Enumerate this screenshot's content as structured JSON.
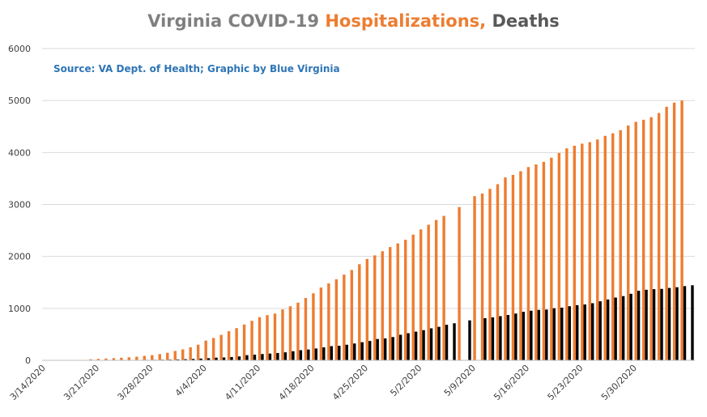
{
  "chart_data": {
    "type": "bar",
    "title_parts": [
      {
        "text": "Virginia COVID-19 ",
        "color": "#7f7f7f"
      },
      {
        "text": "Hospitalizations, ",
        "color": "#ed7d31"
      },
      {
        "text": "Deaths",
        "color": "#595959"
      }
    ],
    "source_note": "Source: VA Dept. of Health; Graphic by Blue Virginia",
    "source_color": "#2e75b6",
    "x_start": "3/14/2020",
    "x_end": "6/6/2020",
    "x_ticks": [
      "3/14/2020",
      "3/21/2020",
      "3/28/2020",
      "4/4/2020",
      "4/11/2020",
      "4/18/2020",
      "4/25/2020",
      "5/2/2020",
      "5/9/2020",
      "5/16/2020",
      "5/23/2020",
      "5/30/2020"
    ],
    "ylim": [
      0,
      6000
    ],
    "y_ticks": [
      0,
      1000,
      2000,
      3000,
      4000,
      5000,
      6000
    ],
    "grid": true,
    "series": [
      {
        "name": "Hospitalizations",
        "color": "#ed7d31",
        "points": [
          [
            "3/20/2020",
            20
          ],
          [
            "3/21/2020",
            28
          ],
          [
            "3/22/2020",
            35
          ],
          [
            "3/23/2020",
            42
          ],
          [
            "3/24/2020",
            50
          ],
          [
            "3/25/2020",
            58
          ],
          [
            "3/26/2020",
            70
          ],
          [
            "3/27/2020",
            85
          ],
          [
            "3/28/2020",
            100
          ],
          [
            "3/29/2020",
            120
          ],
          [
            "3/30/2020",
            145
          ],
          [
            "3/31/2020",
            180
          ],
          [
            "4/1/2020",
            210
          ],
          [
            "4/2/2020",
            250
          ],
          [
            "4/3/2020",
            300
          ],
          [
            "4/4/2020",
            380
          ],
          [
            "4/5/2020",
            430
          ],
          [
            "4/6/2020",
            490
          ],
          [
            "4/7/2020",
            560
          ],
          [
            "4/8/2020",
            620
          ],
          [
            "4/9/2020",
            690
          ],
          [
            "4/10/2020",
            760
          ],
          [
            "4/11/2020",
            830
          ],
          [
            "4/12/2020",
            870
          ],
          [
            "4/13/2020",
            900
          ],
          [
            "4/14/2020",
            980
          ],
          [
            "4/15/2020",
            1040
          ],
          [
            "4/16/2020",
            1110
          ],
          [
            "4/17/2020",
            1200
          ],
          [
            "4/18/2020",
            1290
          ],
          [
            "4/19/2020",
            1400
          ],
          [
            "4/20/2020",
            1480
          ],
          [
            "4/21/2020",
            1560
          ],
          [
            "4/22/2020",
            1650
          ],
          [
            "4/23/2020",
            1740
          ],
          [
            "4/24/2020",
            1850
          ],
          [
            "4/25/2020",
            1950
          ],
          [
            "4/26/2020",
            2020
          ],
          [
            "4/27/2020",
            2100
          ],
          [
            "4/28/2020",
            2180
          ],
          [
            "4/29/2020",
            2250
          ],
          [
            "4/30/2020",
            2320
          ],
          [
            "5/1/2020",
            2420
          ],
          [
            "5/2/2020",
            2520
          ],
          [
            "5/3/2020",
            2610
          ],
          [
            "5/4/2020",
            2700
          ],
          [
            "5/5/2020",
            2780
          ],
          [
            "5/7/2020",
            2950
          ],
          [
            "5/9/2020",
            3160
          ],
          [
            "5/10/2020",
            3210
          ],
          [
            "5/11/2020",
            3300
          ],
          [
            "5/12/2020",
            3390
          ],
          [
            "5/13/2020",
            3520
          ],
          [
            "5/14/2020",
            3570
          ],
          [
            "5/15/2020",
            3640
          ],
          [
            "5/16/2020",
            3720
          ],
          [
            "5/17/2020",
            3770
          ],
          [
            "5/18/2020",
            3820
          ],
          [
            "5/19/2020",
            3900
          ],
          [
            "5/20/2020",
            3990
          ],
          [
            "5/21/2020",
            4080
          ],
          [
            "5/22/2020",
            4130
          ],
          [
            "5/23/2020",
            4170
          ],
          [
            "5/24/2020",
            4200
          ],
          [
            "5/25/2020",
            4250
          ],
          [
            "5/26/2020",
            4320
          ],
          [
            "5/27/2020",
            4370
          ],
          [
            "5/28/2020",
            4430
          ],
          [
            "5/29/2020",
            4520
          ],
          [
            "5/30/2020",
            4590
          ],
          [
            "5/31/2020",
            4630
          ],
          [
            "6/1/2020",
            4680
          ],
          [
            "6/2/2020",
            4760
          ],
          [
            "6/3/2020",
            4880
          ],
          [
            "6/4/2020",
            4960
          ],
          [
            "6/5/2020",
            5000
          ]
        ]
      },
      {
        "name": "Deaths",
        "color": "#000000",
        "points": [
          [
            "3/21/2020",
            2
          ],
          [
            "3/22/2020",
            2
          ],
          [
            "3/23/2020",
            3
          ],
          [
            "3/24/2020",
            4
          ],
          [
            "3/25/2020",
            5
          ],
          [
            "3/26/2020",
            7
          ],
          [
            "3/27/2020",
            9
          ],
          [
            "3/28/2020",
            10
          ],
          [
            "3/29/2020",
            12
          ],
          [
            "3/30/2020",
            14
          ],
          [
            "3/31/2020",
            17
          ],
          [
            "4/1/2020",
            22
          ],
          [
            "4/2/2020",
            27
          ],
          [
            "4/3/2020",
            34
          ],
          [
            "4/4/2020",
            41
          ],
          [
            "4/5/2020",
            51
          ],
          [
            "4/6/2020",
            55
          ],
          [
            "4/7/2020",
            63
          ],
          [
            "4/8/2020",
            75
          ],
          [
            "4/9/2020",
            99
          ],
          [
            "4/10/2020",
            109
          ],
          [
            "4/11/2020",
            121
          ],
          [
            "4/12/2020",
            130
          ],
          [
            "4/13/2020",
            141
          ],
          [
            "4/14/2020",
            154
          ],
          [
            "4/15/2020",
            175
          ],
          [
            "4/16/2020",
            195
          ],
          [
            "4/17/2020",
            208
          ],
          [
            "4/18/2020",
            228
          ],
          [
            "4/19/2020",
            250
          ],
          [
            "4/20/2020",
            273
          ],
          [
            "4/21/2020",
            280
          ],
          [
            "4/22/2020",
            300
          ],
          [
            "4/23/2020",
            324
          ],
          [
            "4/24/2020",
            349
          ],
          [
            "4/25/2020",
            372
          ],
          [
            "4/26/2020",
            410
          ],
          [
            "4/27/2020",
            422
          ],
          [
            "4/28/2020",
            448
          ],
          [
            "4/29/2020",
            492
          ],
          [
            "4/30/2020",
            522
          ],
          [
            "5/1/2020",
            552
          ],
          [
            "5/2/2020",
            581
          ],
          [
            "5/3/2020",
            616
          ],
          [
            "5/4/2020",
            645
          ],
          [
            "5/5/2020",
            684
          ],
          [
            "5/6/2020",
            713
          ],
          [
            "5/8/2020",
            769
          ],
          [
            "5/10/2020",
            812
          ],
          [
            "5/11/2020",
            827
          ],
          [
            "5/12/2020",
            850
          ],
          [
            "5/13/2020",
            872
          ],
          [
            "5/14/2020",
            900
          ],
          [
            "5/15/2020",
            934
          ],
          [
            "5/16/2020",
            955
          ],
          [
            "5/17/2020",
            970
          ],
          [
            "5/18/2020",
            977
          ],
          [
            "5/19/2020",
            1002
          ],
          [
            "5/20/2020",
            1014
          ],
          [
            "5/21/2020",
            1041
          ],
          [
            "5/22/2020",
            1062
          ],
          [
            "5/23/2020",
            1075
          ],
          [
            "5/24/2020",
            1099
          ],
          [
            "5/25/2020",
            1136
          ],
          [
            "5/26/2020",
            1171
          ],
          [
            "5/27/2020",
            1208
          ],
          [
            "5/28/2020",
            1236
          ],
          [
            "5/29/2020",
            1281
          ],
          [
            "5/30/2020",
            1338
          ],
          [
            "5/31/2020",
            1358
          ],
          [
            "6/1/2020",
            1370
          ],
          [
            "6/2/2020",
            1375
          ],
          [
            "6/3/2020",
            1393
          ],
          [
            "6/4/2020",
            1407
          ],
          [
            "6/5/2020",
            1428
          ],
          [
            "6/6/2020",
            1445
          ]
        ]
      }
    ]
  }
}
